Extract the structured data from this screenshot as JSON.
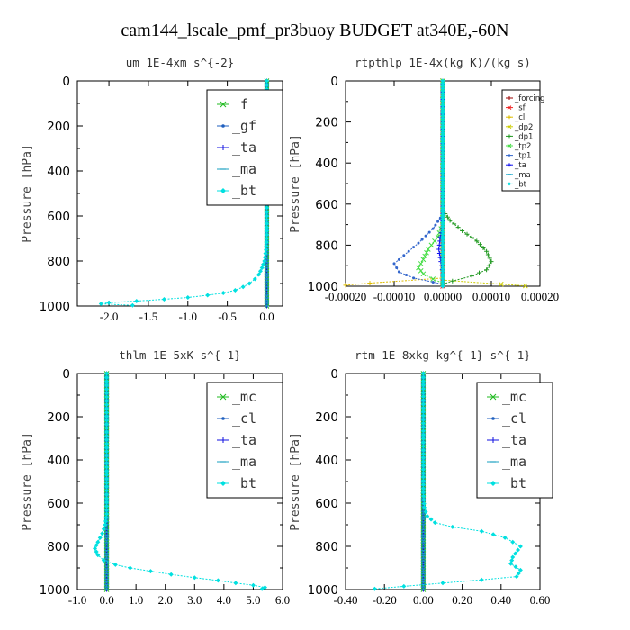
{
  "figure": {
    "title": "cam144_lscale_pmf_pr3buoy  BUDGET at340E,-60N"
  },
  "chart_data": [
    {
      "type": "line",
      "title": "um   1E-4xm s^{-2}",
      "ylabel": "Pressure [hPa]",
      "xlim": [
        -2.4,
        0.2
      ],
      "ylim": [
        1000,
        0
      ],
      "xticks": [
        -2.0,
        -1.5,
        -1.0,
        -0.5,
        0.0
      ],
      "xtick_labels": [
        "-2.0",
        "-1.5",
        "-1.0",
        "-0.5",
        "0.0"
      ],
      "yticks": [
        0,
        200,
        400,
        600,
        800,
        1000
      ],
      "grid": false,
      "legend_position": "top-right",
      "legend_style": "big",
      "series": [
        {
          "name": "_f",
          "color": "#22bb22",
          "marker": "x",
          "x": [
            0,
            0
          ],
          "y": [
            0,
            1000
          ]
        },
        {
          "name": "_gf",
          "color": "#1f5fbf",
          "marker": "dot",
          "x": [
            0,
            0
          ],
          "y": [
            0,
            1000
          ]
        },
        {
          "name": "_ta",
          "color": "#1010e0",
          "marker": "plus",
          "x": [
            0,
            0
          ],
          "y": [
            0,
            1000
          ]
        },
        {
          "name": "_ma",
          "color": "#1aa0c0",
          "marker": "dash",
          "x": [
            0,
            0
          ],
          "y": [
            0,
            1000
          ]
        },
        {
          "name": "_bt",
          "color": "#00e0e0",
          "marker": "diamond",
          "x": [
            0,
            0,
            0,
            -0.01,
            -0.03,
            -0.06,
            -0.1,
            -0.15,
            -0.22,
            -0.3,
            -0.4,
            -0.55,
            -0.75,
            -1.0,
            -1.3,
            -1.65,
            -2.0,
            -2.1,
            -1.7
          ],
          "y": [
            0,
            600,
            700,
            750,
            800,
            830,
            860,
            880,
            900,
            915,
            930,
            942,
            952,
            962,
            970,
            978,
            985,
            990,
            997
          ]
        }
      ]
    },
    {
      "type": "line",
      "title": "rtpthlp   1E-4x(kg K)/(kg s)",
      "ylabel": "Pressure [hPa]",
      "xlim": [
        -0.0002,
        0.0002
      ],
      "ylim": [
        1000,
        0
      ],
      "xticks": [
        -0.0002,
        -0.0001,
        0.0,
        0.0001,
        0.0002
      ],
      "xtick_labels": [
        "-0.00020",
        "-0.00010",
        "0.00000",
        "0.00010",
        "0.00020"
      ],
      "yticks": [
        0,
        200,
        400,
        600,
        800,
        1000
      ],
      "grid": false,
      "legend_position": "top-right",
      "legend_style": "small",
      "series": [
        {
          "name": "_forcing",
          "color": "#990000",
          "marker": "plus",
          "x": [
            0,
            0
          ],
          "y": [
            0,
            1000
          ]
        },
        {
          "name": "_sf",
          "color": "#ee2222",
          "marker": "x",
          "x": [
            0,
            0
          ],
          "y": [
            0,
            1000
          ]
        },
        {
          "name": "_cl",
          "color": "#ddbb00",
          "marker": "plus",
          "x": [
            0,
            0,
            -0.00015,
            -0.0002
          ],
          "y": [
            0,
            960,
            985,
            995
          ]
        },
        {
          "name": "_dp2",
          "color": "#cccc00",
          "marker": "x",
          "x": [
            0,
            0,
            0.00012,
            0.00017
          ],
          "y": [
            0,
            970,
            990,
            998
          ]
        },
        {
          "name": "_dp1",
          "color": "#229922",
          "marker": "plus",
          "x": [
            0,
            0,
            1.5e-05,
            4e-05,
            7e-05,
            9e-05,
            0.0001,
            9e-05,
            6e-05,
            2e-05,
            0
          ],
          "y": [
            0,
            630,
            680,
            730,
            780,
            830,
            880,
            920,
            950,
            975,
            990
          ]
        },
        {
          "name": "_tp2",
          "color": "#44dd44",
          "marker": "x",
          "x": [
            0,
            0,
            -1e-05,
            -3e-05,
            -4e-05,
            -5e-05,
            -4e-05,
            -2e-05,
            0
          ],
          "y": [
            0,
            700,
            760,
            820,
            870,
            910,
            940,
            965,
            985
          ]
        },
        {
          "name": "_tp1",
          "color": "#3366cc",
          "marker": "dot",
          "x": [
            0,
            0,
            -2e-05,
            -5e-05,
            -8e-05,
            -0.0001,
            -9e-05,
            -6e-05,
            -2e-05,
            0
          ],
          "y": [
            0,
            650,
            720,
            790,
            850,
            890,
            930,
            960,
            980,
            990
          ]
        },
        {
          "name": "_ta",
          "color": "#1111ee",
          "marker": "plus",
          "x": [
            0,
            0,
            -5e-06,
            -8e-06,
            -4e-06,
            0
          ],
          "y": [
            0,
            700,
            760,
            820,
            880,
            940
          ]
        },
        {
          "name": "_ma",
          "color": "#22aacc",
          "marker": "dash",
          "x": [
            0,
            0
          ],
          "y": [
            0,
            1000
          ]
        },
        {
          "name": "_bt",
          "color": "#00dddd",
          "marker": "diamond",
          "x": [
            0,
            0
          ],
          "y": [
            0,
            1000
          ]
        }
      ]
    },
    {
      "type": "line",
      "title": "thlm   1E-5xK s^{-1}",
      "ylabel": "Pressure [hPa]",
      "xlim": [
        -1.0,
        6.0
      ],
      "ylim": [
        1000,
        0
      ],
      "xticks": [
        -1.0,
        0.0,
        1.0,
        2.0,
        3.0,
        4.0,
        5.0,
        6.0
      ],
      "xtick_labels": [
        "-1.0",
        "0.0",
        "1.0",
        "2.0",
        "3.0",
        "4.0",
        "5.0",
        "6.0"
      ],
      "yticks": [
        0,
        200,
        400,
        600,
        800,
        1000
      ],
      "grid": false,
      "legend_position": "top-right",
      "legend_style": "big",
      "series": [
        {
          "name": "_mc",
          "color": "#22bb22",
          "marker": "x",
          "x": [
            0,
            0
          ],
          "y": [
            0,
            1000
          ]
        },
        {
          "name": "_cl",
          "color": "#1f5fbf",
          "marker": "dot",
          "x": [
            0,
            0
          ],
          "y": [
            0,
            1000
          ]
        },
        {
          "name": "_ta",
          "color": "#1010e0",
          "marker": "plus",
          "x": [
            0,
            0
          ],
          "y": [
            0,
            1000
          ]
        },
        {
          "name": "_ma",
          "color": "#1aa0c0",
          "marker": "dash",
          "x": [
            0,
            0
          ],
          "y": [
            0,
            1000
          ]
        },
        {
          "name": "_bt",
          "color": "#00e0e0",
          "marker": "diamond",
          "x": [
            0,
            0,
            -0.05,
            -0.15,
            -0.3,
            -0.4,
            -0.3,
            -0.1,
            0.3,
            0.8,
            1.5,
            2.2,
            3.0,
            3.8,
            4.4,
            5.0,
            5.4,
            5.3
          ],
          "y": [
            0,
            650,
            700,
            740,
            780,
            810,
            840,
            865,
            885,
            900,
            915,
            930,
            945,
            958,
            970,
            980,
            990,
            997
          ]
        }
      ]
    },
    {
      "type": "line",
      "title": "rtm   1E-8xkg kg^{-1} s^{-1}",
      "ylabel": "Pressure [hPa]",
      "xlim": [
        -0.4,
        0.6
      ],
      "ylim": [
        1000,
        0
      ],
      "xticks": [
        -0.4,
        -0.2,
        0.0,
        0.2,
        0.4,
        0.6
      ],
      "xtick_labels": [
        "-0.40",
        "-0.20",
        "0.00",
        "0.20",
        "0.40",
        "0.60"
      ],
      "yticks": [
        0,
        200,
        400,
        600,
        800,
        1000
      ],
      "grid": false,
      "legend_position": "top-right",
      "legend_style": "big",
      "series": [
        {
          "name": "_mc",
          "color": "#22bb22",
          "marker": "x",
          "x": [
            0,
            0
          ],
          "y": [
            0,
            1000
          ]
        },
        {
          "name": "_cl",
          "color": "#1f5fbf",
          "marker": "dot",
          "x": [
            0,
            0
          ],
          "y": [
            0,
            1000
          ]
        },
        {
          "name": "_ta",
          "color": "#1010e0",
          "marker": "plus",
          "x": [
            0,
            0
          ],
          "y": [
            0,
            1000
          ]
        },
        {
          "name": "_ma",
          "color": "#1aa0c0",
          "marker": "dash",
          "x": [
            0,
            0
          ],
          "y": [
            0,
            1000
          ]
        },
        {
          "name": "_bt",
          "color": "#00e0e0",
          "marker": "diamond",
          "x": [
            0,
            0,
            0.005,
            0.02,
            0.06,
            0.15,
            0.3,
            0.42,
            0.5,
            0.46,
            0.45,
            0.5,
            0.48,
            0.3,
            0.1,
            -0.1,
            -0.25
          ],
          "y": [
            0,
            550,
            620,
            660,
            690,
            710,
            730,
            760,
            800,
            850,
            880,
            910,
            940,
            955,
            970,
            985,
            997
          ]
        }
      ]
    }
  ]
}
